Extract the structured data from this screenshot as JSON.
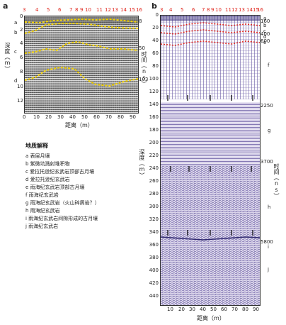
{
  "panel_a": {
    "label": "a",
    "top_numbers": [
      "3",
      "4",
      "5",
      "6",
      "7",
      "8",
      "9",
      "10",
      "11",
      "12",
      "13",
      "14",
      "15",
      "16"
    ],
    "depth_ticks": [
      "0",
      "2",
      "4",
      "6",
      "8",
      "10",
      "12"
    ],
    "time_ticks": [
      "8",
      "50",
      "103"
    ],
    "layer_letters": [
      "a",
      "b",
      "c",
      "d"
    ],
    "x_ticks": [
      "0",
      "10",
      "20",
      "30",
      "40",
      "50",
      "60",
      "70",
      "80",
      "90"
    ],
    "xlabel": "距离（m）",
    "ylabel_left": "深度（m）",
    "ylabel_right": "时间（ns）"
  },
  "panel_b": {
    "label": "b",
    "top_numbers": [
      "3",
      "4",
      "5",
      "6",
      "7",
      "8",
      "9",
      "10",
      "11",
      "12",
      "13",
      "14",
      "15",
      "16"
    ],
    "depth_ticks": [
      "0",
      "20",
      "40",
      "60",
      "80",
      "100",
      "120",
      "140",
      "160",
      "180",
      "200",
      "220",
      "240",
      "260",
      "280",
      "300",
      "320",
      "340",
      "360",
      "380",
      "400",
      "420",
      "440"
    ],
    "time_ticks": [
      "160",
      "400",
      "600",
      "2250",
      "3700",
      "5800"
    ],
    "layer_letters": [
      "a",
      "b",
      "c",
      "d",
      "e",
      "f",
      "g",
      "h",
      "i",
      "j"
    ],
    "x_ticks": [
      "10",
      "20",
      "30",
      "40",
      "50",
      "60",
      "70",
      "80",
      "90"
    ],
    "xlabel": "距离（m）",
    "ylabel_left": "深度（m）",
    "ylabel_right": "时间（ns）"
  },
  "legend": {
    "title": "地质解释",
    "items": [
      "a 表层月壤",
      "b 紫微坑溅射堆积物",
      "c 爱拉托逊纪玄武岩顶部古月壤",
      "d 爱拉托逊纪玄武岩",
      "e 雨海纪玄武岩顶部古月壤",
      "f 雨海纪玄武岩",
      "g 雨海纪玄武岩（火山碎屑岩？）",
      "h 雨海纪玄武岩",
      "i 雨海纪玄武岩间隙形成的古月壤",
      "j 雨海纪玄武岩"
    ]
  },
  "colors": {
    "marker_red": "#e0271e",
    "boundary_yellow": "#f2d100",
    "radar_gray": "#8a8a8a",
    "radar_purple": "#5a4a9a"
  }
}
